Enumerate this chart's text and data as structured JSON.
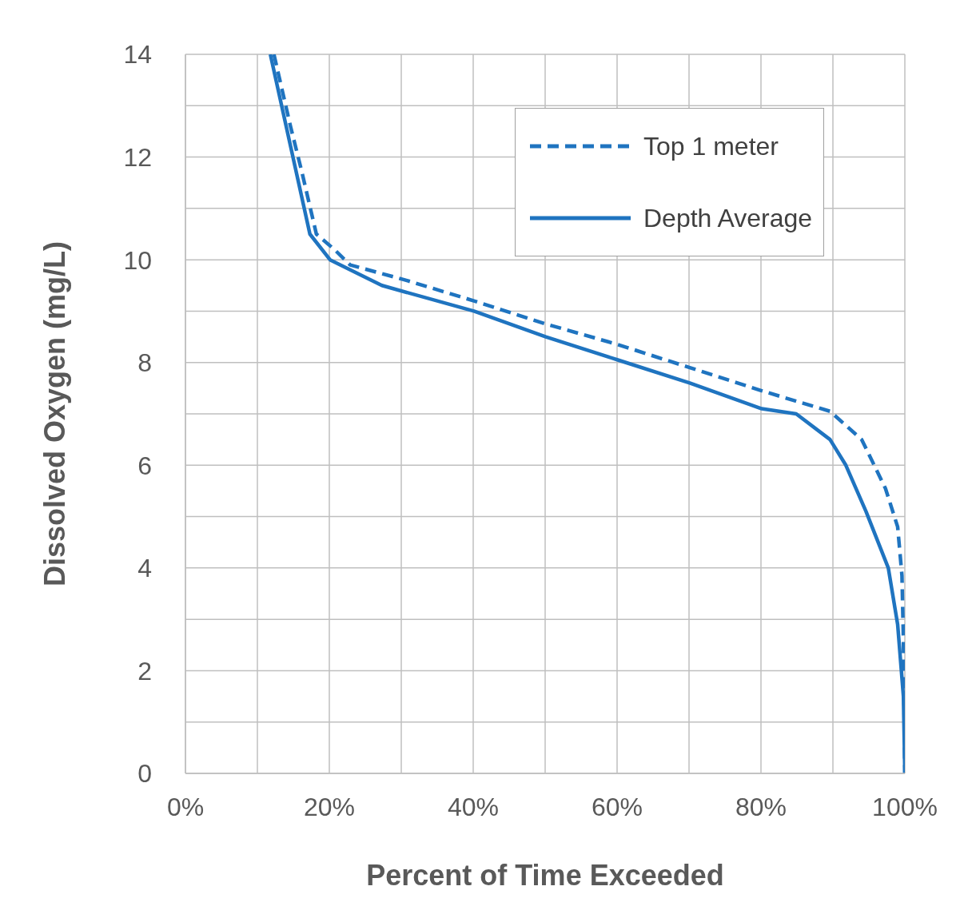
{
  "chart_data": {
    "type": "line",
    "xlabel": "Percent of Time Exceeded",
    "ylabel": "Dissolved Oxygen (mg/L)",
    "xlim": [
      0,
      100
    ],
    "ylim": [
      0,
      14
    ],
    "xticks": [
      {
        "value": 0,
        "label": "0%"
      },
      {
        "value": 10,
        "label": null
      },
      {
        "value": 20,
        "label": "20%"
      },
      {
        "value": 30,
        "label": null
      },
      {
        "value": 40,
        "label": "40%"
      },
      {
        "value": 50,
        "label": null
      },
      {
        "value": 60,
        "label": "60%"
      },
      {
        "value": 70,
        "label": null
      },
      {
        "value": 80,
        "label": "80%"
      },
      {
        "value": 90,
        "label": null
      },
      {
        "value": 100,
        "label": "100%"
      }
    ],
    "yticks": [
      0,
      {
        "value": 1,
        "label": null
      },
      2,
      {
        "value": 3,
        "label": null
      },
      4,
      {
        "value": 5,
        "label": null
      },
      6,
      {
        "value": 7,
        "label": null
      },
      8,
      {
        "value": 9,
        "label": null
      },
      10,
      {
        "value": 11,
        "label": null
      },
      12,
      {
        "value": 13,
        "label": null
      },
      14
    ],
    "grid": true,
    "legend": "top right",
    "marker": "none",
    "series": [
      {
        "name": "Top 1 meter",
        "color": "#1f74c0",
        "line_style": "dashed",
        "x": [
          12.3,
          14.6,
          16.2,
          18.2,
          20.7,
          22.9,
          30.7,
          40.1,
          50.1,
          60.1,
          70.1,
          80.1,
          89.6,
          94,
          97.3,
          99,
          99.6,
          99.8,
          100
        ],
        "values": [
          14,
          12.6,
          11.7,
          10.5,
          10.2,
          9.9,
          9.6,
          9.2,
          8.75,
          8.35,
          7.9,
          7.45,
          7.05,
          6.5,
          5.55,
          4.8,
          3.85,
          2.6,
          0
        ]
      },
      {
        "name": "Depth Average",
        "color": "#1f74c0",
        "line_style": "solid",
        "x": [
          11.8,
          17.3,
          20.1,
          27.3,
          40.1,
          50.1,
          60.1,
          70.1,
          80.1,
          84.9,
          89.6,
          91.8,
          94.6,
          97.7,
          99,
          99.8,
          100
        ],
        "values": [
          14,
          10.5,
          10,
          9.5,
          9,
          8.5,
          8.05,
          7.6,
          7.1,
          7,
          6.5,
          6,
          5.1,
          4,
          2.9,
          1.5,
          0
        ]
      }
    ]
  }
}
